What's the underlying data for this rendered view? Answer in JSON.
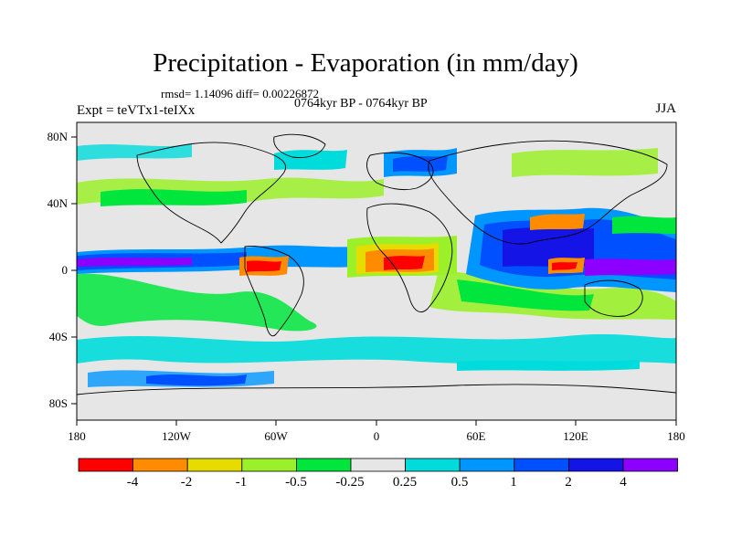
{
  "map": {
    "title": "Precipitation - Evaporation (in mm/day)",
    "stats": "rmsd= 1.14096 diff= 0.00226872",
    "period": "0764kyr BP - 0764kyr BP",
    "experiment": "Expt = teVTx1-teIXx",
    "season": "JJA",
    "x_ticks": [
      "180",
      "120W",
      "60W",
      "0",
      "60E",
      "120E",
      "180"
    ],
    "y_ticks": [
      "80N",
      "40N",
      "0",
      "40S",
      "80S"
    ]
  },
  "colorbar": {
    "labels": [
      "-4",
      "-2",
      "-1",
      "-0.5",
      "-0.25",
      "0.25",
      "0.5",
      "1",
      "2",
      "4"
    ],
    "colors": [
      "#ff0000",
      "#ff8c00",
      "#e6dc00",
      "#9bf02a",
      "#00e63c",
      "#e6e6e6",
      "#00dcdc",
      "#0096ff",
      "#0050ff",
      "#1414e6",
      "#8c00ff"
    ]
  }
}
